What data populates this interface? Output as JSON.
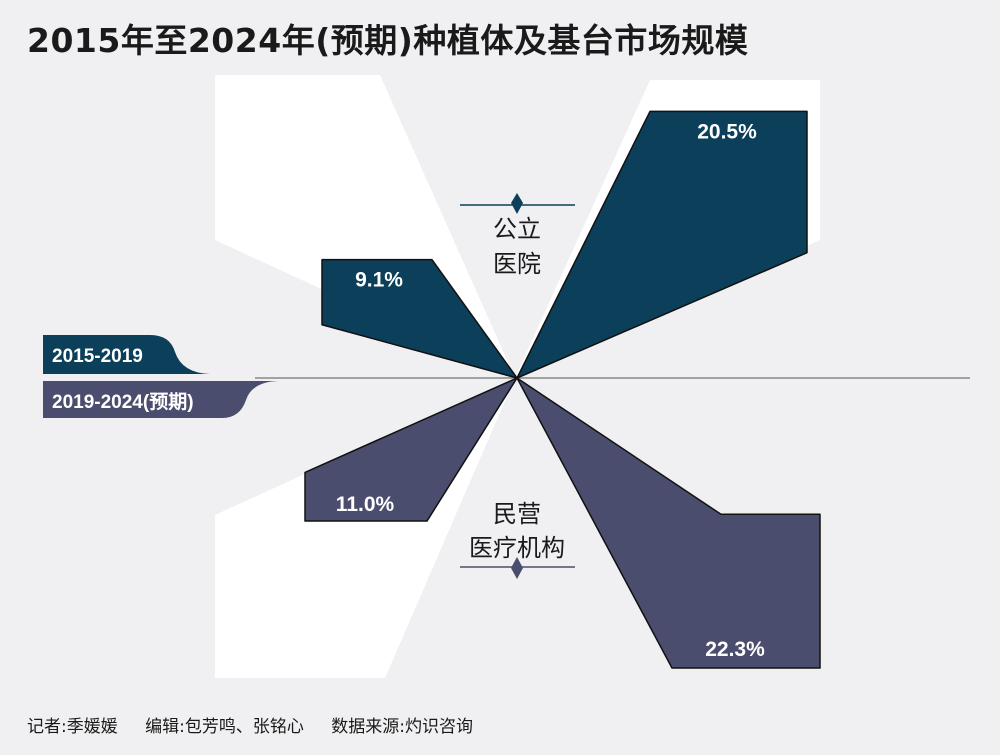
{
  "title": "2015年至2024年(预期)种植体及基台市场规模",
  "colors": {
    "background": "#f0f0f2",
    "period1": "#0c3f5a",
    "period2": "#4b4d6e",
    "white": "#ffffff",
    "text": "#1a1a1a"
  },
  "legend": {
    "period1": "2015-2019",
    "period2": "2019-2024(预期)"
  },
  "chart_data": {
    "type": "bar",
    "title": "2015年至2024年(预期)种植体及基台市场规模",
    "categories": [
      "公立医院",
      "民营医疗机构"
    ],
    "unit": "%",
    "series": [
      {
        "name": "2015-2019",
        "values": [
          9.1,
          11.0
        ]
      },
      {
        "name": "2019-2024(预期)",
        "values": [
          20.5,
          22.3
        ]
      }
    ],
    "value_labels": {
      "public_2015_2019": "9.1%",
      "public_2019_2024": "20.5%",
      "private_2015_2019": "11.0%",
      "private_2019_2024": "22.3%"
    },
    "category_labels": {
      "public_line1": "公立",
      "public_line2": "医院",
      "private_line1": "民营",
      "private_line2": "医疗机构"
    }
  },
  "footer": {
    "reporter": "记者:季媛媛",
    "editor": "编辑:包芳鸣、张铭心",
    "source": "数据来源:灼识咨询"
  }
}
